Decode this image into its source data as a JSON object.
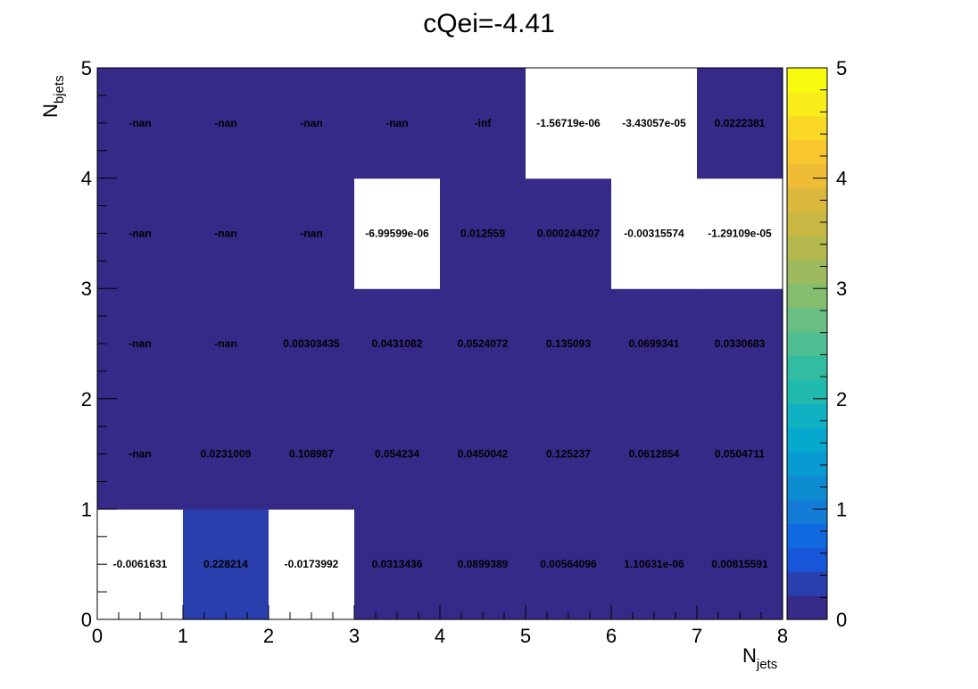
{
  "chart_data": {
    "type": "heatmap",
    "title": "cQei=-4.41",
    "xlabel": {
      "main": "N",
      "sub": "jets"
    },
    "ylabel": {
      "main": "N",
      "sub": "bjets"
    },
    "xlim": [
      0,
      8
    ],
    "ylim": [
      0,
      5
    ],
    "zlim": [
      0,
      5
    ],
    "x_ticks": [
      "0",
      "1",
      "2",
      "3",
      "4",
      "5",
      "6",
      "7",
      "8"
    ],
    "y_ticks": [
      "0",
      "1",
      "2",
      "3",
      "4",
      "5"
    ],
    "z_ticks": [
      "0",
      "1",
      "2",
      "3",
      "4",
      "5"
    ],
    "colormap": [
      "#352a87",
      "#2a3fae",
      "#1656d8",
      "#1069de",
      "#137bd6",
      "#0c8bd1",
      "#079bd1",
      "#07a8cd",
      "#11b1c4",
      "#1fbaad",
      "#32bda2",
      "#4fbe93",
      "#69be83",
      "#85bd6f",
      "#9dbb5e",
      "#b4b84e",
      "#c8b843",
      "#dab83c",
      "#eebc35",
      "#f8c72e",
      "#f9d925",
      "#f8ec19",
      "#f9fb0e"
    ],
    "rows": [
      {
        "y": 0.5,
        "values": [
          -0.0061631,
          0.228214,
          -0.0173992,
          0.0313436,
          0.0899389,
          0.00564096,
          1.10631e-06,
          0.00815591
        ],
        "labels": [
          "-0.0061631",
          "0.228214",
          "-0.0173992",
          "0.0313436",
          "0.0899389",
          "0.00564096",
          "1.10631e-06",
          "0.00815591"
        ]
      },
      {
        "y": 1.5,
        "values": [
          "nan",
          0.0231009,
          0.108987,
          0.054234,
          0.0450042,
          0.125237,
          0.0612854,
          0.0504711
        ],
        "labels": [
          "-nan",
          "0.0231009",
          "0.108987",
          "0.054234",
          "0.0450042",
          "0.125237",
          "0.0612854",
          "0.0504711"
        ]
      },
      {
        "y": 2.5,
        "values": [
          "nan",
          "nan",
          0.00303435,
          0.0431082,
          0.0524072,
          0.135093,
          0.0699341,
          0.0330683
        ],
        "labels": [
          "-nan",
          "-nan",
          "0.00303435",
          "0.0431082",
          "0.0524072",
          "0.135093",
          "0.0699341",
          "0.0330683"
        ]
      },
      {
        "y": 3.5,
        "values": [
          "nan",
          "nan",
          "nan",
          -6.99599e-06,
          0.012559,
          0.000244207,
          -0.00315574,
          -1.29109e-05
        ],
        "labels": [
          "-nan",
          "-nan",
          "-nan",
          "-6.99599e-06",
          "0.012559",
          "0.000244207",
          "-0.00315574",
          "-1.29109e-05"
        ]
      },
      {
        "y": 4.5,
        "values": [
          "nan",
          "nan",
          "nan",
          "nan",
          "-inf",
          -1.56719e-06,
          -3.43057e-05,
          0.0222381
        ],
        "labels": [
          "-nan",
          "-nan",
          "-nan",
          "-nan",
          "-inf",
          "-1.56719e-06",
          "-3.43057e-05",
          "0.0222381"
        ]
      }
    ],
    "colors": {
      "nan_cell": "#352a87",
      "below_min_cell": "#ffffff",
      "frame": "#000000"
    }
  }
}
